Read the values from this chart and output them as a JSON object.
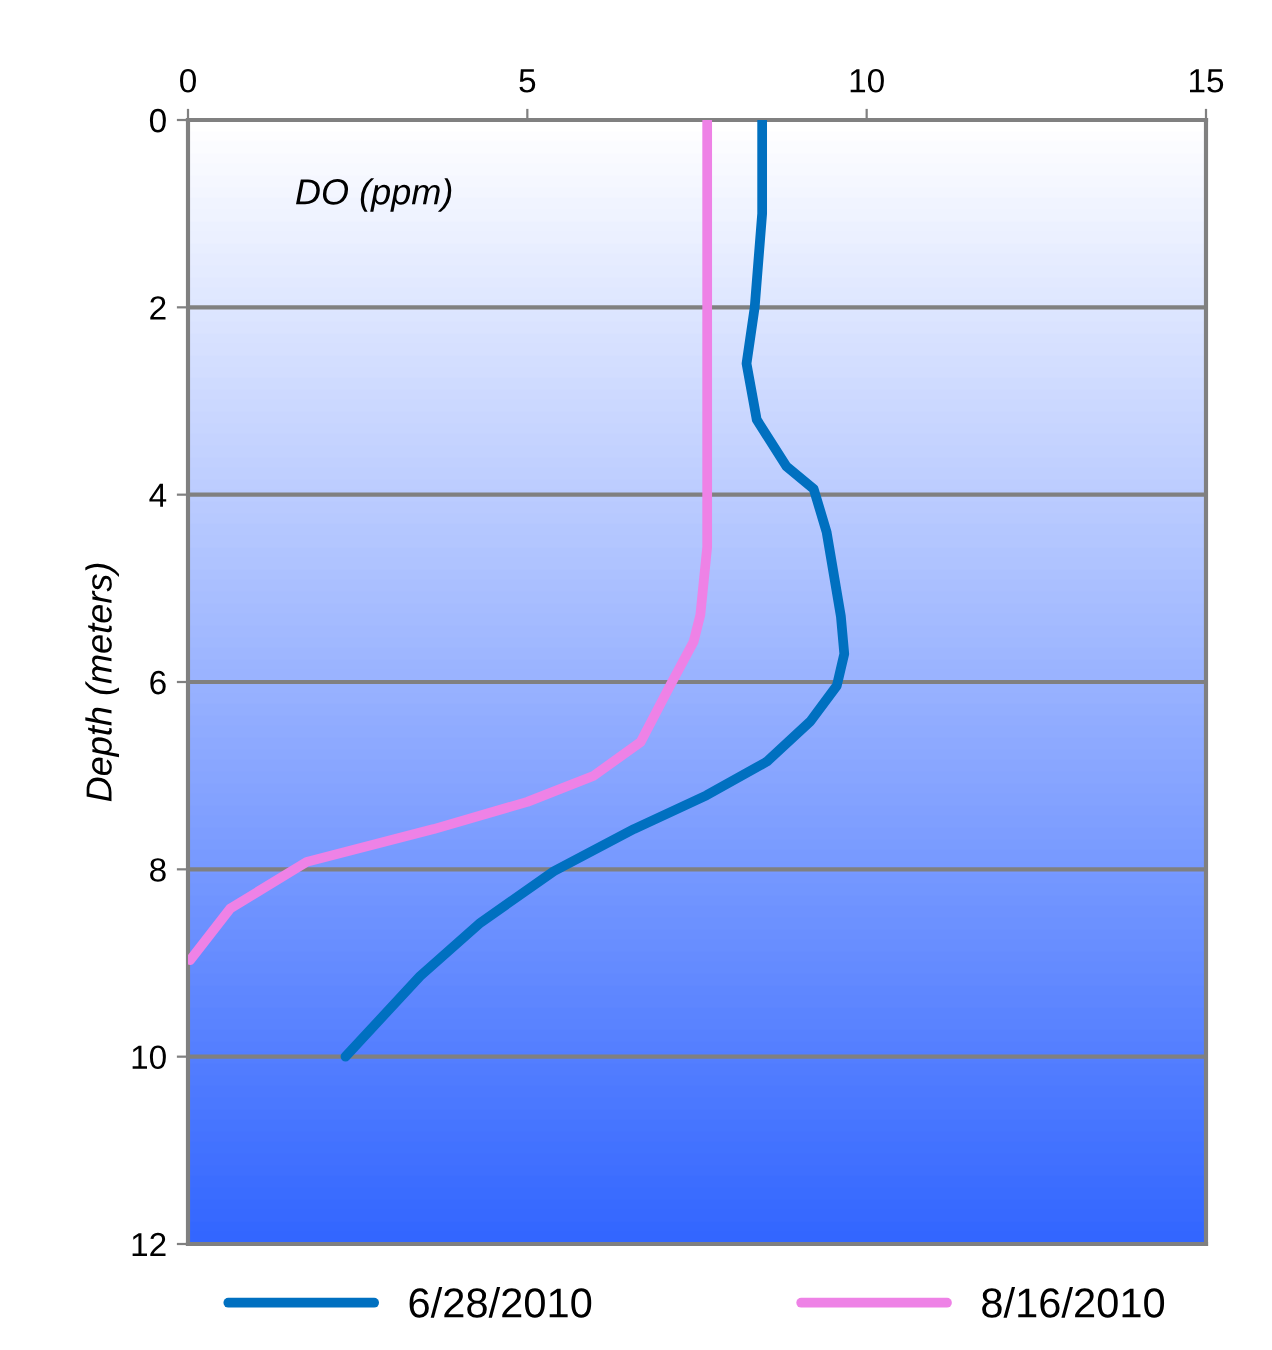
{
  "chart_data": {
    "type": "line",
    "xlabel": "DO (ppm)",
    "ylabel": "Depth (meters)",
    "xlim": [
      0,
      15
    ],
    "xticks": [
      0,
      5,
      10,
      15
    ],
    "ylim": [
      12,
      0
    ],
    "yticks": [
      0,
      2,
      4,
      6,
      8,
      10,
      12
    ],
    "grid": "y",
    "legend": "bottom",
    "marker": "none",
    "line_style": "solid",
    "series": [
      {
        "name": "6/28/2010",
        "color": "#0070c0",
        "x": [
          8.46,
          8.46,
          8.35,
          8.23,
          8.38,
          8.82,
          9.22,
          9.41,
          9.62,
          9.67,
          9.56,
          9.17,
          8.53,
          7.64,
          6.57,
          5.39,
          4.31,
          3.42,
          2.32
        ],
        "values": [
          0,
          1.0,
          2.0,
          2.6,
          3.2,
          3.7,
          3.94,
          4.4,
          5.3,
          5.7,
          6.04,
          6.42,
          6.85,
          7.21,
          7.57,
          8.02,
          8.57,
          9.14,
          10
        ]
      },
      {
        "name": "8/16/2010",
        "color": "#ee82e6",
        "x": [
          7.65,
          7.65,
          7.65,
          7.55,
          7.45,
          7.11,
          6.67,
          5.98,
          5.0,
          3.62,
          1.75,
          0.62,
          0.03
        ],
        "values": [
          0,
          2.0,
          4.56,
          5.28,
          5.57,
          6.03,
          6.64,
          7.0,
          7.28,
          7.57,
          7.92,
          8.42,
          8.97
        ]
      }
    ]
  }
}
